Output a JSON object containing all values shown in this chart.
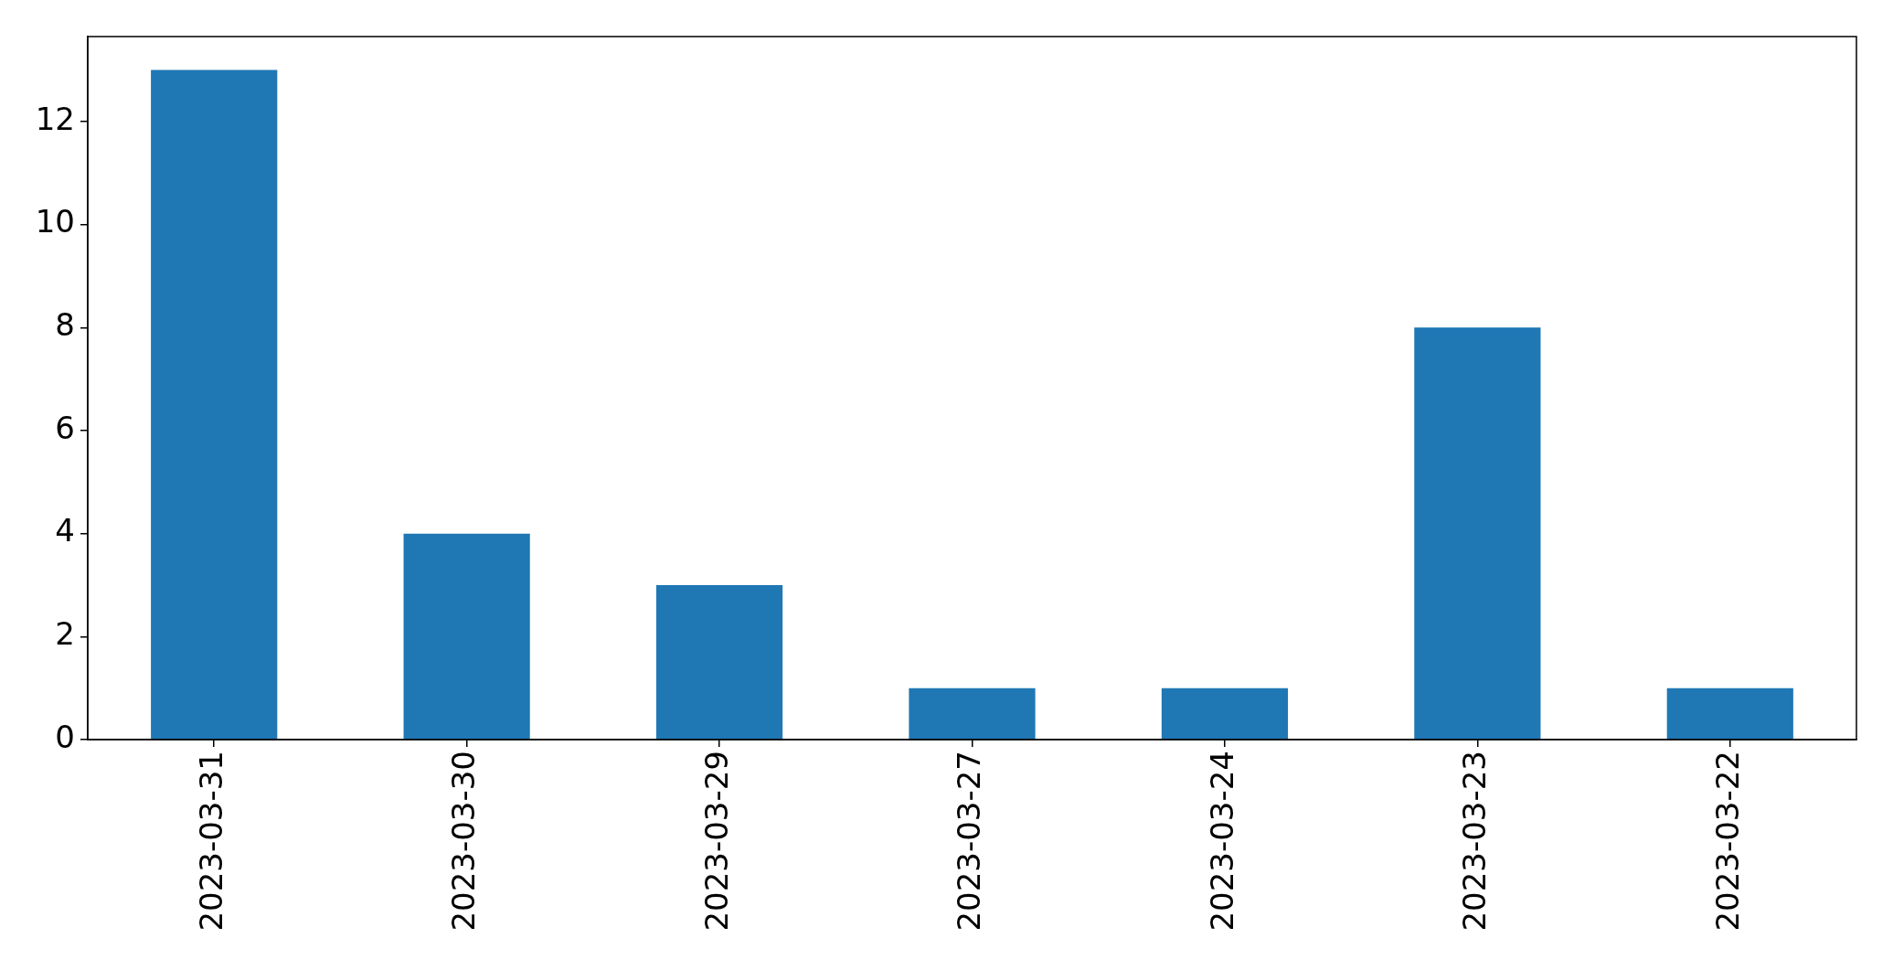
{
  "chart_data": {
    "type": "bar",
    "categories": [
      "2023-03-31",
      "2023-03-30",
      "2023-03-29",
      "2023-03-27",
      "2023-03-24",
      "2023-03-23",
      "2023-03-22"
    ],
    "values": [
      13,
      4,
      3,
      1,
      1,
      8,
      1
    ],
    "color": "#1f77b4",
    "ylim": [
      0,
      13.65
    ],
    "yticks": [
      0,
      2,
      4,
      6,
      8,
      10,
      12
    ]
  }
}
